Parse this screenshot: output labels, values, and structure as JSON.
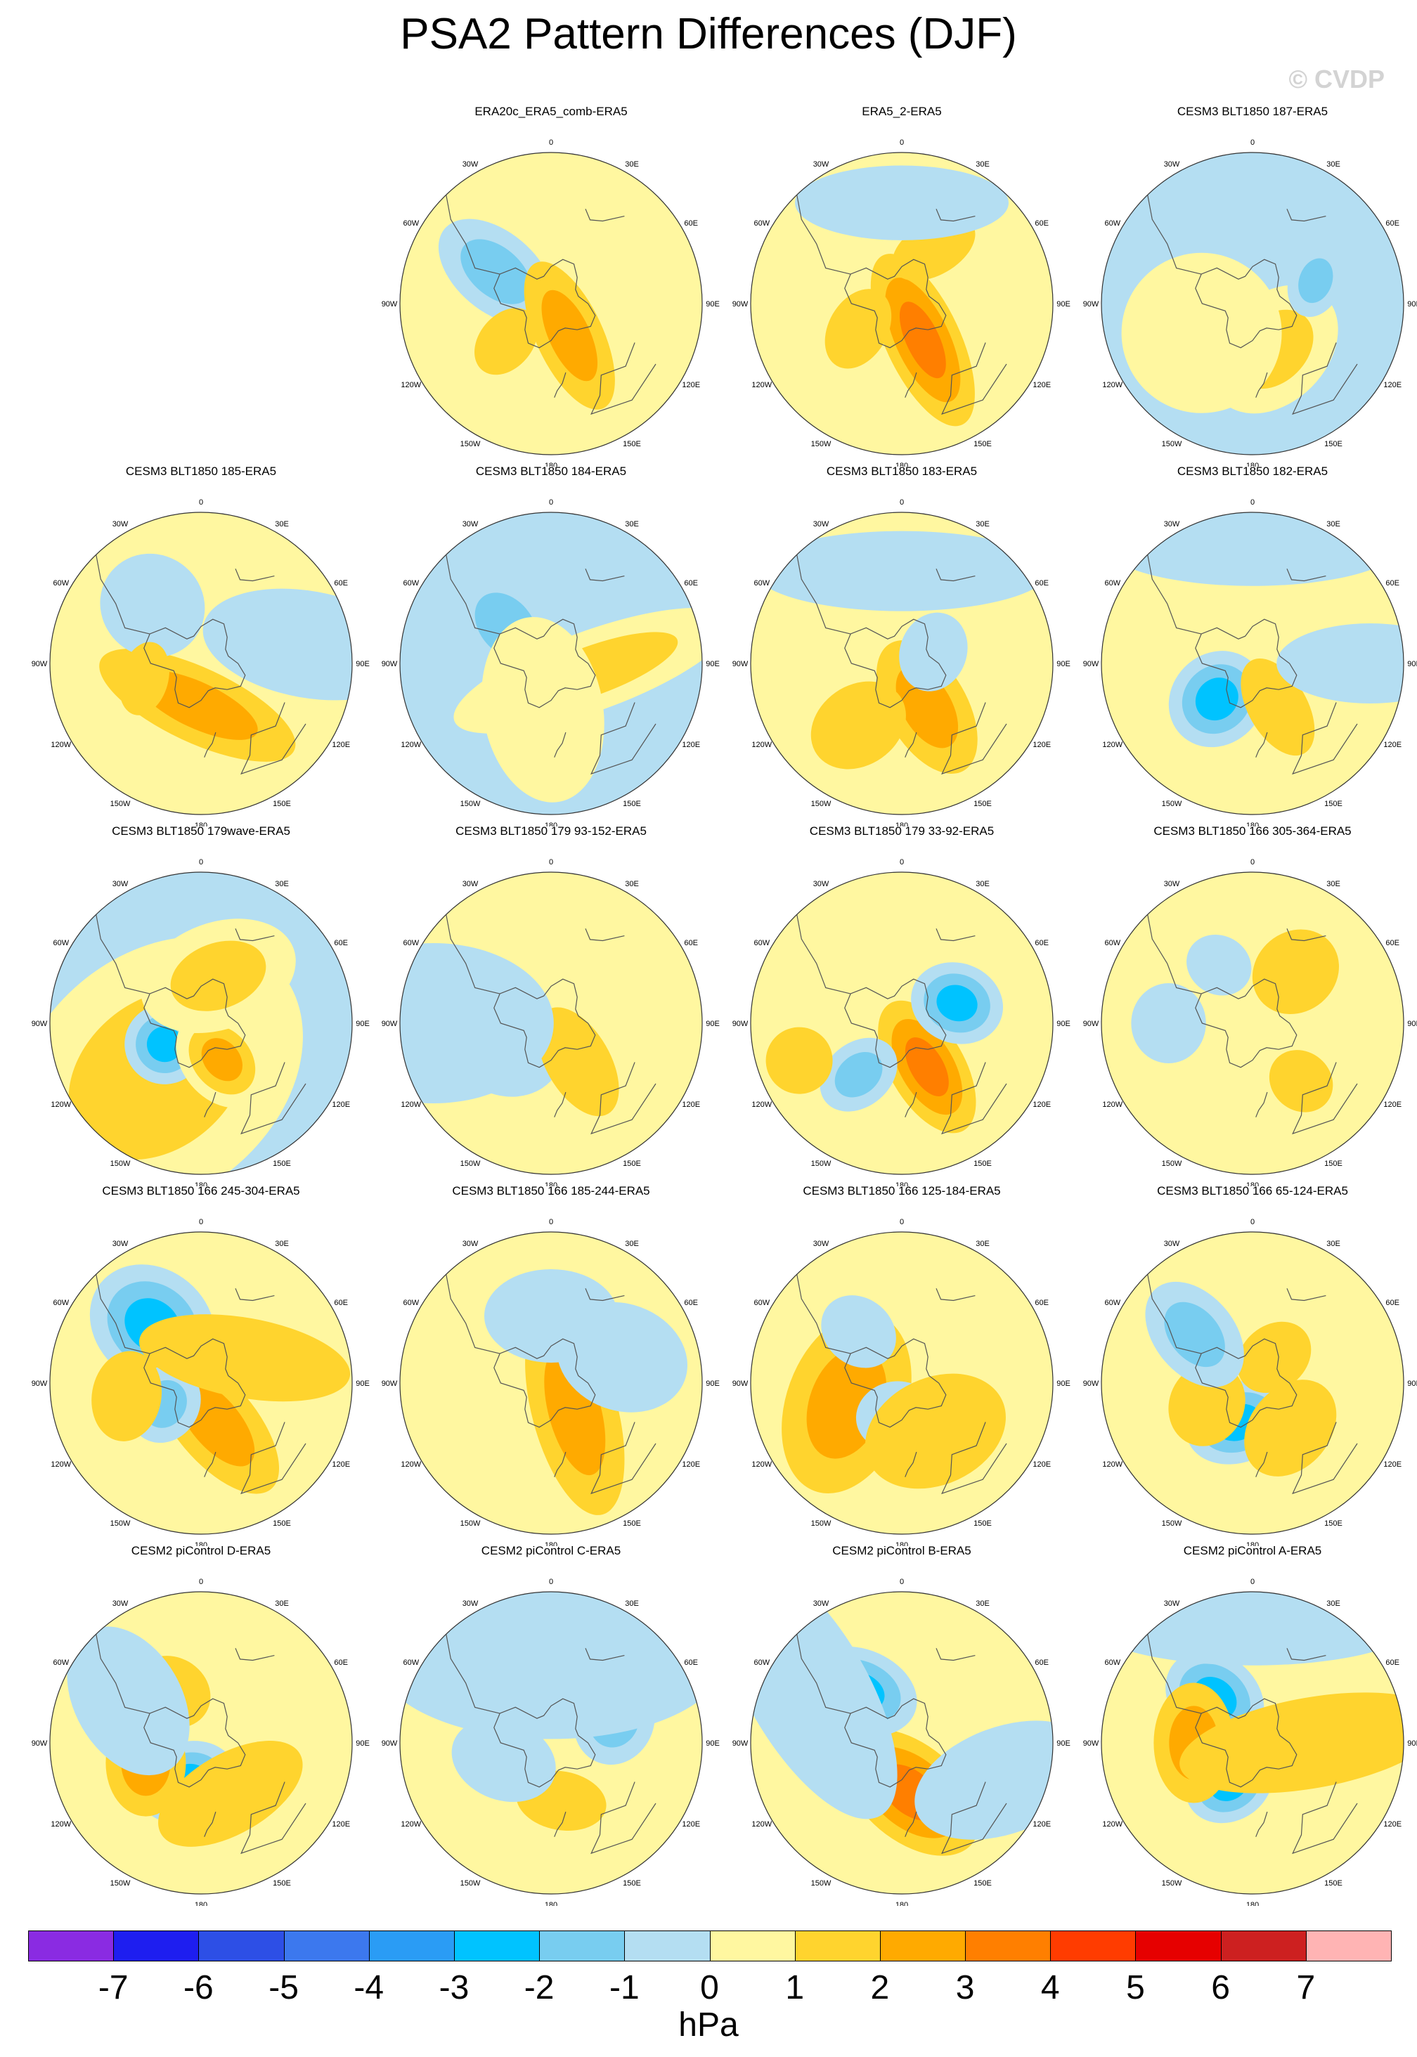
{
  "title": "PSA2 Pattern Differences (DJF)",
  "watermark": "© CVDP",
  "units": "hPa",
  "lon_labels": [
    "0",
    "30E",
    "60E",
    "90E",
    "120E",
    "150E",
    "180",
    "150W",
    "120W",
    "90W",
    "60W",
    "30W"
  ],
  "colorbar": {
    "labels": [
      "-7",
      "-6",
      "-5",
      "-4",
      "-3",
      "-2",
      "-1",
      "0",
      "1",
      "2",
      "3",
      "4",
      "5",
      "6",
      "7"
    ],
    "colors": [
      "#8a2be2",
      "#1e1ef0",
      "#2d4fe6",
      "#3c78ee",
      "#2a9cf5",
      "#00c3ff",
      "#78cdf0",
      "#b4def2",
      "#fff7a0",
      "#ffd42e",
      "#ffaa00",
      "#ff7f00",
      "#ff3c00",
      "#e60000",
      "#cd2020",
      "#ffb4b4"
    ]
  },
  "panels": [
    {
      "title": "ERA20c_ERA5_comb-ERA5",
      "base": 0,
      "blobs": [
        {
          "lon": 300,
          "colat": 38,
          "rx": 50,
          "ry": 30,
          "rot": -20,
          "v": -2
        },
        {
          "lon": 150,
          "colat": 22,
          "rx": 60,
          "ry": 25,
          "rot": 35,
          "v": 3
        },
        {
          "lon": 100,
          "colat": 42,
          "rx": 40,
          "ry": 24,
          "rot": 0,
          "v": 1
        },
        {
          "lon": 230,
          "colat": 35,
          "rx": 28,
          "ry": 20,
          "rot": 0,
          "v": 2
        }
      ]
    },
    {
      "title": "ERA5_2-ERA5",
      "base": 1,
      "blobs": [
        {
          "lon": 150,
          "colat": 25,
          "rx": 70,
          "ry": 28,
          "rot": 35,
          "v": 4
        },
        {
          "lon": 240,
          "colat": 30,
          "rx": 32,
          "ry": 22,
          "rot": 0,
          "v": 2
        },
        {
          "lon": 30,
          "colat": 38,
          "rx": 34,
          "ry": 20,
          "rot": 0,
          "v": 2
        },
        {
          "lon": 0,
          "colat": 60,
          "rx": 80,
          "ry": 28,
          "rot": 0,
          "v": -1
        }
      ]
    },
    {
      "title": "CESM3 BLT1850 187-ERA5",
      "base": -1,
      "blobs": [
        {
          "lon": 155,
          "colat": 30,
          "rx": 40,
          "ry": 55,
          "rot": 20,
          "v": 2
        },
        {
          "lon": 70,
          "colat": 40,
          "rx": 28,
          "ry": 20,
          "rot": 0,
          "v": -2
        },
        {
          "lon": 240,
          "colat": 35,
          "rx": 60,
          "ry": 60,
          "rot": 0,
          "v": 1
        }
      ]
    },
    {
      "title": "CESM3 BLT1850 185-ERA5",
      "base": 1,
      "blobs": [
        {
          "lon": 185,
          "colat": 25,
          "rx": 80,
          "ry": 28,
          "rot": 30,
          "v": 3
        },
        {
          "lon": 320,
          "colat": 45,
          "rx": 40,
          "ry": 38,
          "rot": 0,
          "v": -1
        },
        {
          "lon": 255,
          "colat": 35,
          "rx": 28,
          "ry": 18,
          "rot": 0,
          "v": 2
        },
        {
          "lon": 80,
          "colat": 65,
          "rx": 40,
          "ry": 80,
          "rot": 0,
          "v": -1
        }
      ]
    },
    {
      "title": "CESM3 BLT1850 184-ERA5",
      "base": -1,
      "blobs": [
        {
          "lon": 100,
          "colat": 25,
          "rx": 30,
          "ry": 110,
          "rot": -10,
          "v": 2
        },
        {
          "lon": 310,
          "colat": 35,
          "rx": 45,
          "ry": 32,
          "rot": 0,
          "v": -2
        },
        {
          "lon": 190,
          "colat": 28,
          "rx": 45,
          "ry": 70,
          "rot": 0,
          "v": 1
        }
      ]
    },
    {
      "title": "CESM3 BLT1850 183-ERA5",
      "base": 1,
      "blobs": [
        {
          "lon": 150,
          "colat": 30,
          "rx": 55,
          "ry": 30,
          "rot": 30,
          "v": 3
        },
        {
          "lon": 215,
          "colat": 45,
          "rx": 38,
          "ry": 30,
          "rot": 0,
          "v": 2
        },
        {
          "lon": 70,
          "colat": 20,
          "rx": 30,
          "ry": 25,
          "rot": 0,
          "v": -1
        },
        {
          "lon": 0,
          "colat": 55,
          "rx": 110,
          "ry": 30,
          "rot": 0,
          "v": -1
        }
      ]
    },
    {
      "title": "CESM3 BLT1850 182-ERA5",
      "base": 1,
      "blobs": [
        {
          "lon": 225,
          "colat": 30,
          "rx": 38,
          "ry": 34,
          "rot": 0,
          "v": -3
        },
        {
          "lon": 150,
          "colat": 30,
          "rx": 40,
          "ry": 22,
          "rot": 30,
          "v": 2
        },
        {
          "lon": 0,
          "colat": 70,
          "rx": 110,
          "ry": 30,
          "rot": 0,
          "v": -1
        },
        {
          "lon": 90,
          "colat": 70,
          "rx": 30,
          "ry": 70,
          "rot": 0,
          "v": -1
        }
      ]
    },
    {
      "title": "CESM3 BLT1850 179wave-ERA5",
      "base": -1,
      "blobs": [
        {
          "lon": 220,
          "colat": 40,
          "rx": 120,
          "ry": 90,
          "rot": 0,
          "v": 2
        },
        {
          "lon": 240,
          "colat": 25,
          "rx": 30,
          "ry": 30,
          "rot": 0,
          "v": -3
        },
        {
          "lon": 150,
          "colat": 25,
          "rx": 40,
          "ry": 30,
          "rot": 20,
          "v": 3
        },
        {
          "lon": 20,
          "colat": 30,
          "rx": 60,
          "ry": 40,
          "rot": 0,
          "v": 2
        }
      ]
    },
    {
      "title": "CESM3 BLT1850 179 93-152-ERA5",
      "base": 1,
      "blobs": [
        {
          "lon": 245,
          "colat": 30,
          "rx": 38,
          "ry": 44,
          "rot": 0,
          "v": -1
        },
        {
          "lon": 145,
          "colat": 28,
          "rx": 45,
          "ry": 24,
          "rot": 25,
          "v": 2
        },
        {
          "lon": 270,
          "colat": 70,
          "rx": 60,
          "ry": 90,
          "rot": 0,
          "v": -1
        }
      ]
    },
    {
      "title": "CESM3 BLT1850 179 33-92-ERA5",
      "base": 1,
      "blobs": [
        {
          "lon": 150,
          "colat": 30,
          "rx": 55,
          "ry": 28,
          "rot": 30,
          "v": 4
        },
        {
          "lon": 70,
          "colat": 35,
          "rx": 30,
          "ry": 35,
          "rot": 0,
          "v": -3
        },
        {
          "lon": 220,
          "colat": 40,
          "rx": 32,
          "ry": 24,
          "rot": 0,
          "v": -2
        },
        {
          "lon": 250,
          "colat": 65,
          "rx": 25,
          "ry": 25,
          "rot": 0,
          "v": 2
        }
      ]
    },
    {
      "title": "CESM3 BLT1850 166 305-364-ERA5",
      "base": 1,
      "blobs": [
        {
          "lon": 40,
          "colat": 40,
          "rx": 34,
          "ry": 30,
          "rot": 0,
          "v": 2
        },
        {
          "lon": 270,
          "colat": 50,
          "rx": 30,
          "ry": 28,
          "rot": 0,
          "v": -1
        },
        {
          "lon": 140,
          "colat": 45,
          "rx": 25,
          "ry": 22,
          "rot": 0,
          "v": 2
        },
        {
          "lon": 330,
          "colat": 40,
          "rx": 25,
          "ry": 22,
          "rot": 0,
          "v": -1
        }
      ]
    },
    {
      "title": "CESM3 BLT1850 166 245-304-ERA5",
      "base": 1,
      "blobs": [
        {
          "lon": 320,
          "colat": 45,
          "rx": 50,
          "ry": 42,
          "rot": 0,
          "v": -3
        },
        {
          "lon": 160,
          "colat": 25,
          "rx": 65,
          "ry": 30,
          "rot": 30,
          "v": 3
        },
        {
          "lon": 240,
          "colat": 25,
          "rx": 30,
          "ry": 26,
          "rot": 0,
          "v": -2
        },
        {
          "lon": 260,
          "colat": 45,
          "rx": 34,
          "ry": 26,
          "rot": 0,
          "v": 2
        },
        {
          "lon": 60,
          "colat": 30,
          "rx": 30,
          "ry": 80,
          "rot": -20,
          "v": 2
        }
      ]
    },
    {
      "title": "CESM3 BLT1850 166 185-244-ERA5",
      "base": 1,
      "blobs": [
        {
          "lon": 140,
          "colat": 22,
          "rx": 80,
          "ry": 32,
          "rot": 35,
          "v": 3
        },
        {
          "lon": 0,
          "colat": 40,
          "rx": 50,
          "ry": 35,
          "rot": 0,
          "v": -1
        },
        {
          "lon": 70,
          "colat": 45,
          "rx": 40,
          "ry": 50,
          "rot": 0,
          "v": -1
        }
      ]
    },
    {
      "title": "CESM3 BLT1850 166 125-184-ERA5",
      "base": 1,
      "blobs": [
        {
          "lon": 250,
          "colat": 35,
          "rx": 70,
          "ry": 45,
          "rot": 0,
          "v": 3
        },
        {
          "lon": 190,
          "colat": 20,
          "rx": 30,
          "ry": 26,
          "rot": 0,
          "v": -1
        },
        {
          "lon": 145,
          "colat": 35,
          "rx": 40,
          "ry": 55,
          "rot": 30,
          "v": 2
        },
        {
          "lon": 320,
          "colat": 40,
          "rx": 30,
          "ry": 25,
          "rot": 0,
          "v": -1
        }
      ]
    },
    {
      "title": "CESM3 BLT1850 166 65-124-ERA5",
      "base": 1,
      "blobs": [
        {
          "lon": 200,
          "colat": 25,
          "rx": 40,
          "ry": 30,
          "rot": 0,
          "v": -3
        },
        {
          "lon": 245,
          "colat": 30,
          "rx": 32,
          "ry": 28,
          "rot": 0,
          "v": 2
        },
        {
          "lon": 40,
          "colat": 20,
          "rx": 30,
          "ry": 24,
          "rot": 0,
          "v": 2
        },
        {
          "lon": 310,
          "colat": 45,
          "rx": 45,
          "ry": 30,
          "rot": 0,
          "v": -2
        },
        {
          "lon": 140,
          "colat": 35,
          "rx": 30,
          "ry": 40,
          "rot": 0,
          "v": 2
        }
      ]
    },
    {
      "title": "CESM2 piControl D-ERA5",
      "base": 1,
      "blobs": [
        {
          "lon": 200,
          "colat": 25,
          "rx": 38,
          "ry": 30,
          "rot": 0,
          "v": -3
        },
        {
          "lon": 250,
          "colat": 35,
          "rx": 40,
          "ry": 30,
          "rot": -20,
          "v": 3
        },
        {
          "lon": 150,
          "colat": 35,
          "rx": 30,
          "ry": 60,
          "rot": 30,
          "v": 2
        },
        {
          "lon": 330,
          "colat": 35,
          "rx": 30,
          "ry": 26,
          "rot": 0,
          "v": 2
        },
        {
          "lon": 300,
          "colat": 50,
          "rx": 60,
          "ry": 40,
          "rot": 0,
          "v": -1
        }
      ]
    },
    {
      "title": "CESM2 piControl C-ERA5",
      "base": 1,
      "blobs": [
        {
          "lon": 70,
          "colat": 40,
          "rx": 34,
          "ry": 30,
          "rot": 0,
          "v": -2
        },
        {
          "lon": 170,
          "colat": 35,
          "rx": 34,
          "ry": 22,
          "rot": 0,
          "v": 2
        },
        {
          "lon": 0,
          "colat": 50,
          "rx": 130,
          "ry": 60,
          "rot": 0,
          "v": -1
        },
        {
          "lon": 250,
          "colat": 30,
          "rx": 30,
          "ry": 40,
          "rot": 0,
          "v": -1
        }
      ]
    },
    {
      "title": "CESM2 piControl B-ERA5",
      "base": 1,
      "blobs": [
        {
          "lon": 170,
          "colat": 30,
          "rx": 60,
          "ry": 36,
          "rot": 30,
          "v": 4
        },
        {
          "lon": 320,
          "colat": 40,
          "rx": 45,
          "ry": 32,
          "rot": -20,
          "v": -3
        },
        {
          "lon": 300,
          "colat": 65,
          "rx": 110,
          "ry": 45,
          "rot": 0,
          "v": -1
        },
        {
          "lon": 110,
          "colat": 65,
          "rx": 40,
          "ry": 70,
          "rot": 0,
          "v": -1
        }
      ]
    },
    {
      "title": "CESM2 piControl A-ERA5",
      "base": 1,
      "blobs": [
        {
          "lon": 320,
          "colat": 35,
          "rx": 40,
          "ry": 32,
          "rot": 0,
          "v": -3
        },
        {
          "lon": 210,
          "colat": 28,
          "rx": 34,
          "ry": 28,
          "rot": 0,
          "v": -3
        },
        {
          "lon": 270,
          "colat": 35,
          "rx": 45,
          "ry": 30,
          "rot": 0,
          "v": 3
        },
        {
          "lon": 90,
          "colat": 35,
          "rx": 34,
          "ry": 100,
          "rot": -10,
          "v": 2
        },
        {
          "lon": 0,
          "colat": 70,
          "rx": 120,
          "ry": 30,
          "rot": 0,
          "v": -1
        }
      ]
    }
  ]
}
